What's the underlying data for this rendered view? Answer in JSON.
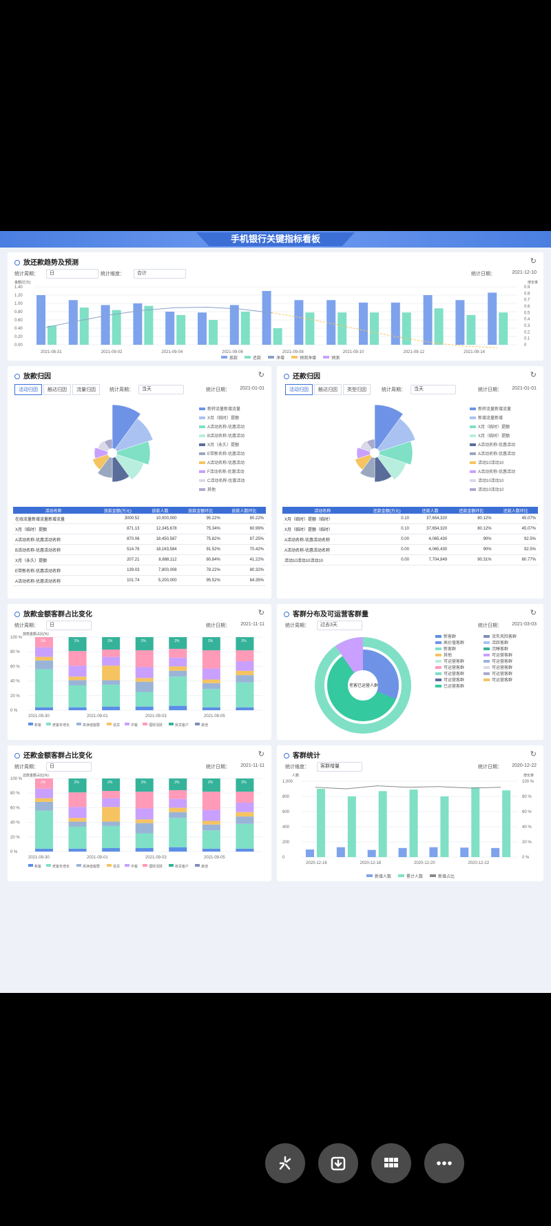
{
  "banner": {
    "title": "手机银行关键指标看板"
  },
  "common": {
    "period_label": "统计周期：",
    "dimension_label": "统计维度：",
    "date_label": "统计日期："
  },
  "panel1": {
    "title": "放还款趋势及预测",
    "period_value": "日",
    "dimension_value": "合计",
    "date": "2021-12-10",
    "unit_left": "金额(亿元)",
    "unit_right": "增长率",
    "legend": [
      "放款",
      "还款",
      "净增",
      "预测净增",
      "预测"
    ],
    "x_labels": [
      "2021-08-31",
      "2021-09-02",
      "2021-09-04",
      "2021-09-06",
      "2021-09-08",
      "2021-09-10",
      "2021-09-12",
      "2021-09-14"
    ],
    "y_left": [
      "1.40",
      "1.20",
      "1.00",
      "0.80",
      "0.60",
      "0.40",
      "0.20",
      "0.00"
    ],
    "y_right": [
      "0.9",
      "0.8",
      "0.7",
      "0.6",
      "0.5",
      "0.4",
      "0.3",
      "0.2",
      "0.1",
      "0"
    ]
  },
  "panel2": {
    "title": "放款归因",
    "tabs": [
      "活动归因",
      "触达归因",
      "流量归因"
    ],
    "period_value": "当天",
    "date": "2021-01-01",
    "columns": [
      "活动名称",
      "放款金额(万元)",
      "放款人数",
      "放款金额环比",
      "放款人数环比"
    ],
    "rows": [
      [
        "在线流量新增流量新增流量",
        "3000.52",
        "10,000,000",
        "95.22%",
        "80.22%"
      ],
      [
        "X月（临时）提额",
        "871.13",
        "12,345,678",
        "75.34%",
        "60.99%"
      ],
      [
        "A活动名称-优惠活动名称",
        "870.06",
        "18,450,587",
        "75.82%",
        "87.25%"
      ],
      [
        "B活动名称-优惠活动名称",
        "514.76",
        "18,163,584",
        "91.52%",
        "70.42%"
      ],
      [
        "X月（永久）提额",
        "207.21",
        "8,888,112",
        "80.84%",
        "41.22%"
      ],
      [
        "E带新名称-优惠活动名称",
        "139.03",
        "7,800,008",
        "78.22%",
        "80.32%"
      ],
      [
        "A活动名称-优惠活动名称",
        "101.74",
        "5,200,000",
        "95.52%",
        "84.35%"
      ]
    ],
    "rose_legend": [
      "新转流量新增流量",
      "X月（临时）提额",
      "A活动名称-优惠活动",
      "B活动名称-优惠活动",
      "X月（永久）提额",
      "E带新名称-优惠活动",
      "A活动名称-优惠活动",
      "F活动名称-优惠活动",
      "C活动名称-优惠活动",
      "其他"
    ]
  },
  "panel3": {
    "title": "还款归因",
    "tabs": [
      "活动归因",
      "触达归因",
      "类型归因"
    ],
    "period_value": "当天",
    "date": "2021-01-01",
    "columns": [
      "活动名称",
      "还款金额(万元)",
      "还款人数",
      "还款金额环比",
      "还款人数环比"
    ],
    "rows": [
      [
        "X月（临时）提额（临时）",
        "0.10",
        "37,654,320",
        "80.12%",
        "45.07%"
      ],
      [
        "X月（临时）提额（临时）",
        "0.10",
        "37,654,320",
        "80.12%",
        "45.07%"
      ],
      [
        "A活动名称-优惠活动名称",
        "0.00",
        "4,065,430",
        "90%",
        "92.5%"
      ],
      [
        "A活动名称-优惠活动名称",
        "0.00",
        "4,065,430",
        "90%",
        "92.5%"
      ],
      [
        "活动10活动10活动10",
        "0.00",
        "7,704,849",
        "90.31%",
        "60.77%"
      ]
    ],
    "rose_legend": [
      "新转流量新增流量",
      "新增流量新增",
      "X月（临时）提额",
      "X月（临时）提额",
      "A活动名称-优惠活动",
      "A活动名称-优惠活动",
      "活动10活动10",
      "A活动名称-优惠活动",
      "活动10活动10",
      "活动10活动10"
    ]
  },
  "panel4": {
    "title": "放款金额客群占比变化",
    "period_value": "日",
    "date": "2021-11-11",
    "unit": "放款金额占比(%)",
    "x_labels": [
      "2021-09-30",
      "2021-09-01",
      "2021-09-03",
      "2021-09-05"
    ],
    "legend": [
      "新客",
      "老客年增长",
      "高净值客群",
      "信贷",
      "中客",
      "理财活跃",
      "房贷客户",
      "其他"
    ],
    "y_ticks": [
      "100 %",
      "80 %",
      "60 %",
      "40 %",
      "20 %",
      "0 %"
    ]
  },
  "panel5": {
    "title": "客群分布及可运营客群量",
    "period_value": "过去3天",
    "date": "2021-03-03",
    "center_label": "老客已运营人群",
    "outer_labels": [
      "可运营客群",
      "可运营客群",
      "可运营客群可运营客群",
      "可运营客群可运营客群",
      "可运营客群可运营客群",
      "已运营可运营客群"
    ],
    "legend": [
      "新客群",
      "流失风险客群",
      "高价值客群",
      "活跃客群",
      "新客群",
      "沉睡客群",
      "其他",
      "可运营客群",
      "可运营客群",
      "可运营客群",
      "可运营客群",
      "可运营客群",
      "可运营客群",
      "可运营客群",
      "可运营客群",
      "可运营客群",
      "已运营客群"
    ]
  },
  "panel6": {
    "title": "还款金额客群占比变化",
    "period_value": "日",
    "date": "2021-11-11",
    "unit": "还款金额占比(%)",
    "x_labels": [
      "2021-09-30",
      "2021-09-01",
      "2021-09-03",
      "2021-09-05"
    ],
    "legend": [
      "新客",
      "老客年增长",
      "高净值客群",
      "信贷",
      "中客",
      "理财活跃",
      "房贷客户",
      "其他"
    ],
    "y_ticks": [
      "100 %",
      "80 %",
      "60 %",
      "40 %",
      "20 %",
      "0 %"
    ]
  },
  "panel7": {
    "title": "客群统计",
    "dimension_value": "客群增量",
    "date": "2020-12-22",
    "unit_left": "人数",
    "unit_right": "增长率",
    "legend": [
      "新增人数",
      "累计人数",
      "新增占比"
    ],
    "x_labels": [
      "2020-12-16",
      "2020-12-18",
      "2020-12-20",
      "2020-12-22"
    ],
    "y_left": [
      "1,000",
      "800",
      "600",
      "400",
      "200",
      "0"
    ],
    "y_right": [
      "100 %",
      "80 %",
      "60 %",
      "40 %",
      "20 %",
      "0 %"
    ]
  },
  "chart_data": [
    {
      "type": "bar",
      "title": "放还款趋势及预测",
      "series": [
        {
          "name": "放款",
          "values": [
            1.2,
            1.08,
            0.96,
            1.0,
            0.8,
            0.78,
            0.96,
            1.3,
            1.08,
            1.08,
            1.02,
            1.02,
            1.2,
            1.08,
            1.26
          ]
        },
        {
          "name": "还款",
          "values": [
            0.46,
            0.9,
            0.84,
            0.94,
            0.72,
            0.6,
            0.8,
            0.4,
            0.78,
            0.78,
            0.78,
            0.78,
            0.88,
            0.72,
            0.78
          ]
        }
      ],
      "ylim": [
        0,
        1.4
      ]
    },
    {
      "type": "bar",
      "title": "客群统计",
      "x": [
        "2020-12-16",
        "2020-12-17",
        "2020-12-18",
        "2020-12-19",
        "2020-12-20",
        "2020-12-21",
        "2020-12-22"
      ],
      "series": [
        {
          "name": "新增人数",
          "values": [
            100,
            130,
            95,
            120,
            130,
            125,
            120
          ]
        },
        {
          "name": "累计人数",
          "values": [
            900,
            800,
            870,
            890,
            800,
            920,
            880
          ]
        },
        {
          "name": "新增占比",
          "values": [
            92,
            90,
            94,
            92,
            93,
            91,
            92
          ]
        }
      ],
      "ylim": [
        0,
        1000
      ]
    }
  ],
  "nav_buttons": [
    "share-icon",
    "download-icon",
    "grid-icon",
    "more-icon"
  ]
}
